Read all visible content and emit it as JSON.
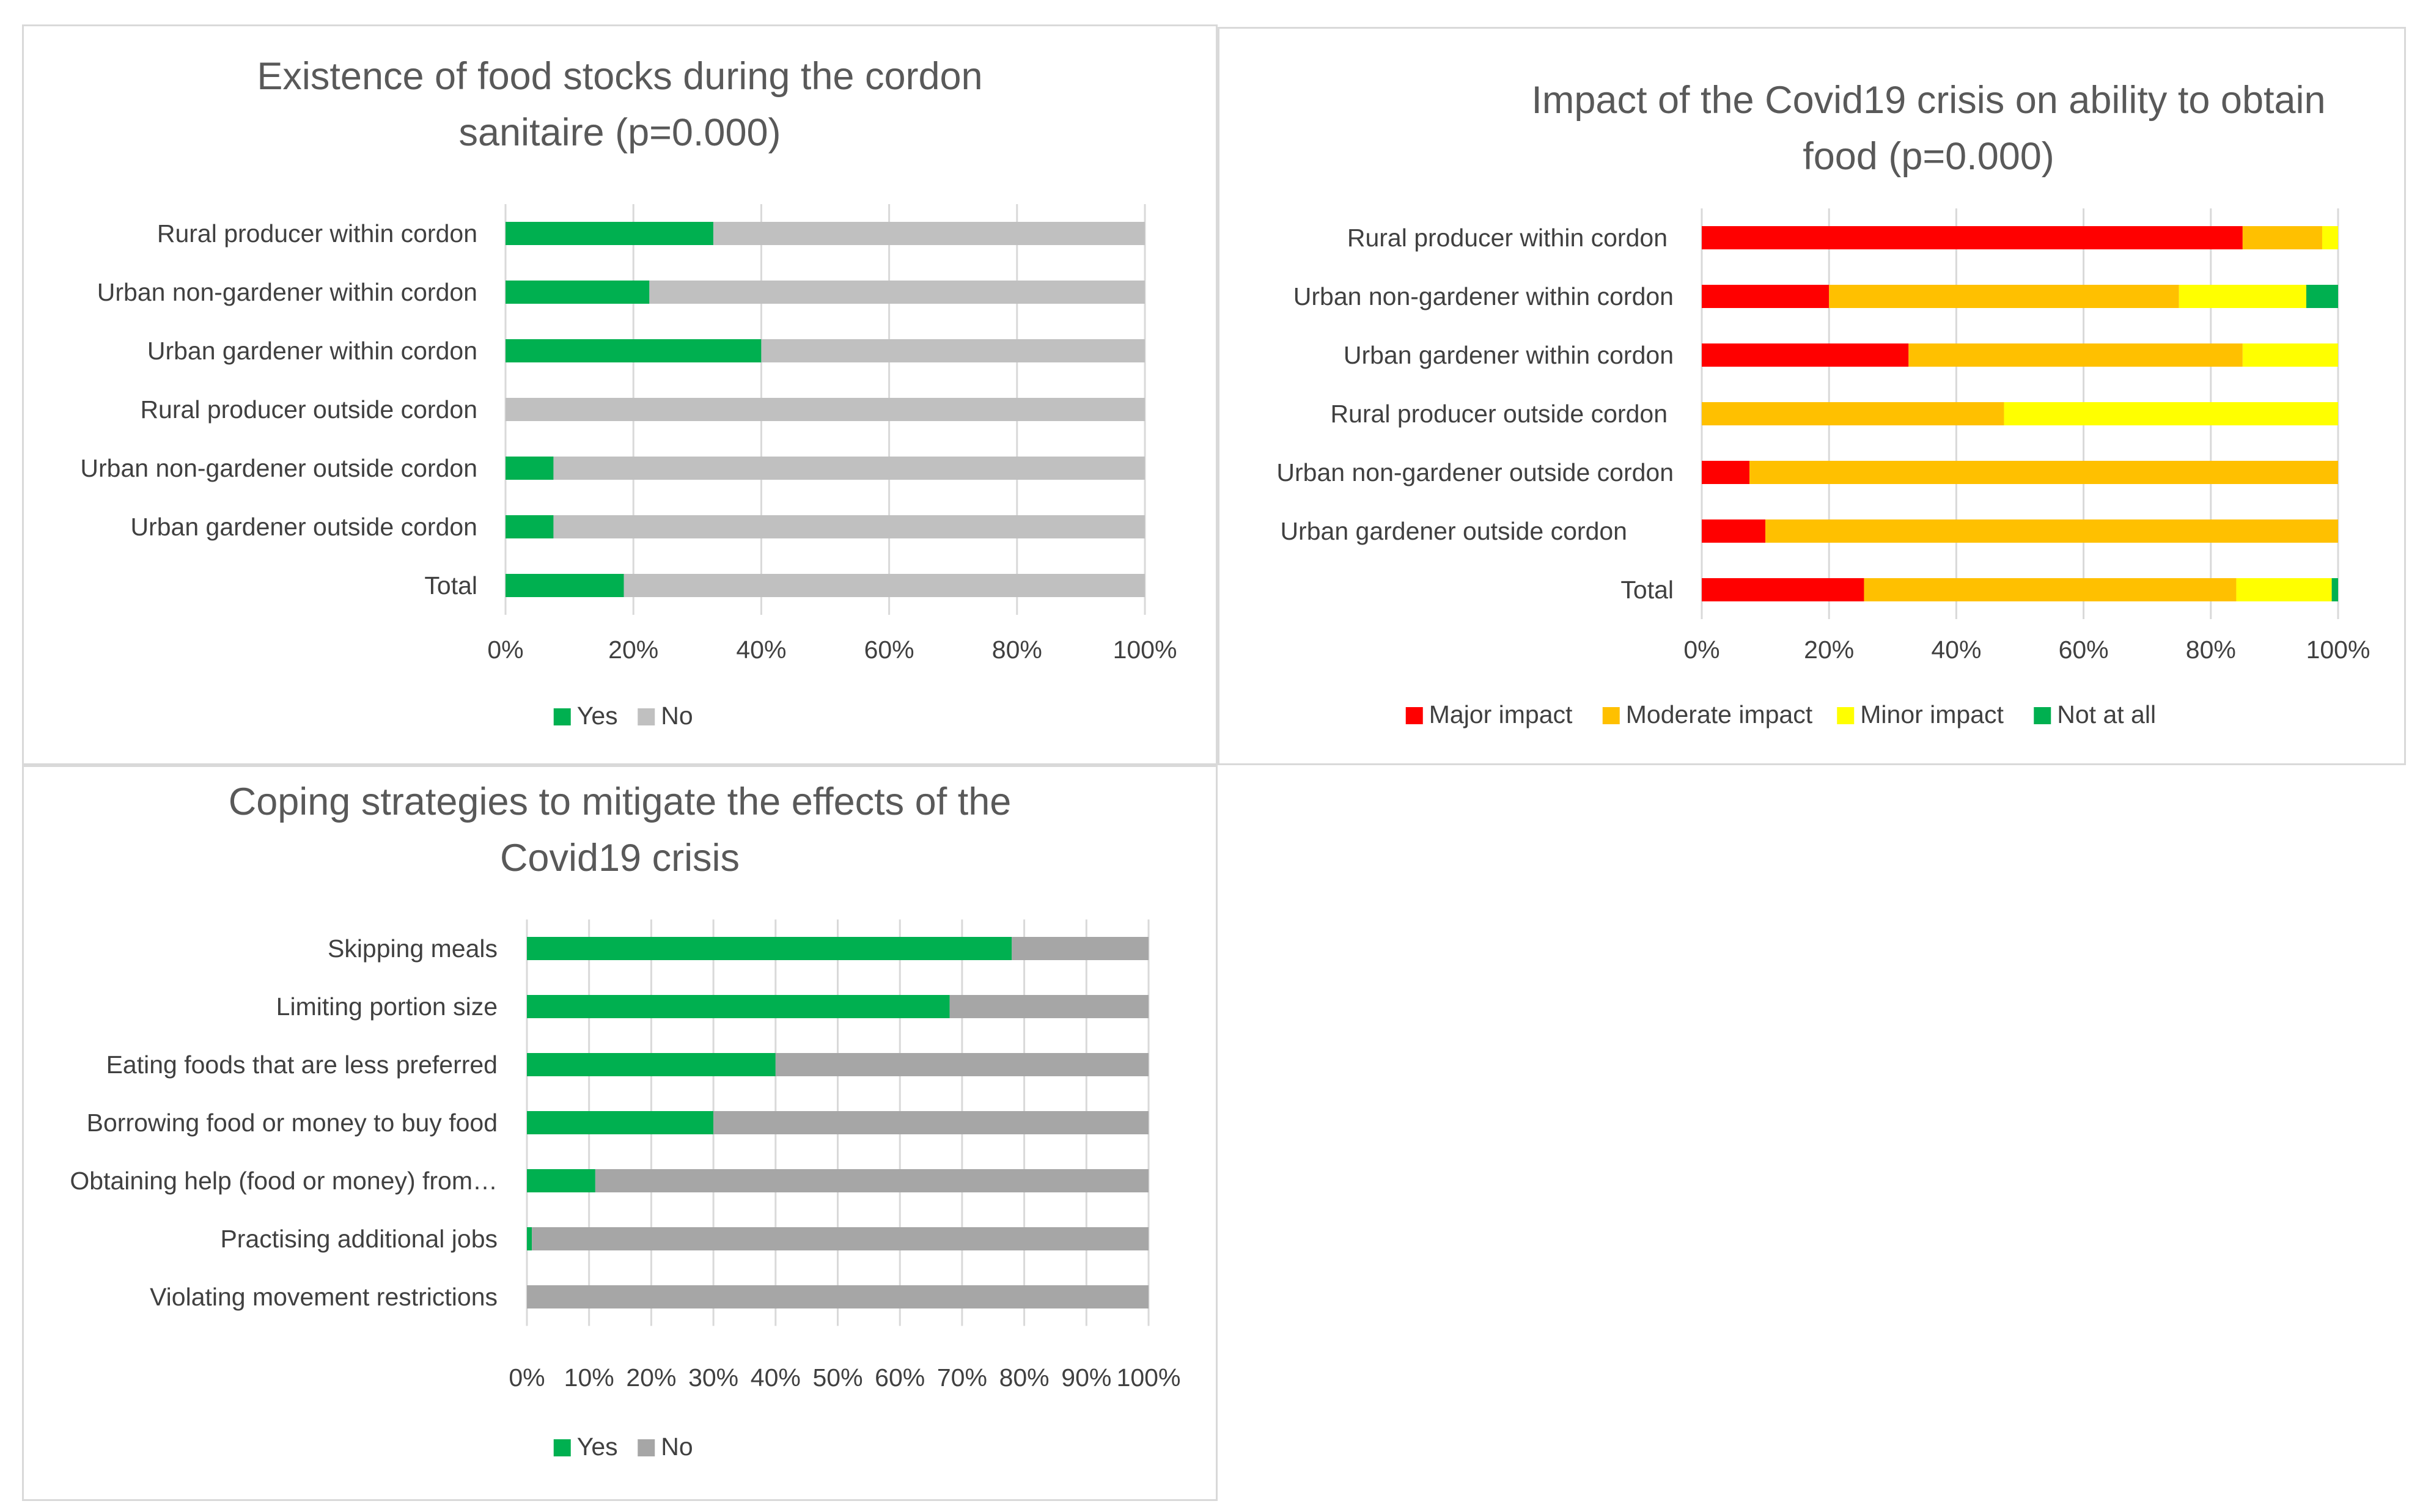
{
  "colors": {
    "yes": "#00b050",
    "no_light": "#c0c0c0",
    "no_dark": "#a6a6a6",
    "major": "#ff0000",
    "moderate": "#ffc000",
    "minor": "#ffff00",
    "not_at_all": "#00b050",
    "grid": "#d9d9d9",
    "text": "#404040",
    "title": "#595959"
  },
  "chart_data": [
    {
      "type": "bar",
      "orientation": "horizontal-stacked-100",
      "title": "Existence of food stocks during the cordon sanitaire (p=0.000)",
      "title_lines": [
        "Existence of food stocks during the cordon",
        "sanitaire (p=0.000)"
      ],
      "categories": [
        "Rural producer within cordon",
        "Urban non-gardener within cordon",
        "Urban gardener within cordon",
        "Rural producer outside cordon",
        "Urban non-gardener outside cordon",
        "Urban gardener outside cordon",
        "Total"
      ],
      "series": [
        {
          "name": "Yes",
          "color": "#00b050",
          "values": [
            32.5,
            22.5,
            40,
            0,
            7.5,
            7.5,
            18.5
          ]
        },
        {
          "name": "No",
          "color": "#c0c0c0",
          "values": [
            67.5,
            77.5,
            60,
            100,
            92.5,
            92.5,
            81.5
          ]
        }
      ],
      "xticks": [
        "0%",
        "20%",
        "40%",
        "60%",
        "80%",
        "100%"
      ],
      "xlim": [
        0,
        100
      ],
      "legend": "bottom"
    },
    {
      "type": "bar",
      "orientation": "horizontal-stacked-100",
      "title": "Impact of the Covid19 crisis on ability to obtain food (p=0.000)",
      "title_lines": [
        "Impact of the Covid19 crisis on ability to obtain",
        "food (p=0.000)"
      ],
      "categories": [
        "Rural producer within cordon",
        "Urban non-gardener within cordon",
        "Urban gardener within cordon",
        "Rural producer outside cordon",
        "Urban non-gardener outside cordon",
        "Urban gardener outside cordon",
        "Total"
      ],
      "series": [
        {
          "name": "Major impact",
          "color": "#ff0000",
          "values": [
            85,
            20,
            32.5,
            0,
            7.5,
            10,
            25.5
          ]
        },
        {
          "name": "Moderate impact",
          "color": "#ffc000",
          "values": [
            12.5,
            55,
            52.5,
            47.5,
            92.5,
            90,
            58.5
          ]
        },
        {
          "name": "Minor impact",
          "color": "#ffff00",
          "values": [
            2.5,
            20,
            15,
            52.5,
            0,
            0,
            15
          ]
        },
        {
          "name": "Not at all",
          "color": "#00b050",
          "values": [
            0,
            5,
            0,
            0,
            0,
            0,
            1
          ]
        }
      ],
      "xticks": [
        "0%",
        "20%",
        "40%",
        "60%",
        "80%",
        "100%"
      ],
      "xlim": [
        0,
        100
      ],
      "legend": "bottom"
    },
    {
      "type": "bar",
      "orientation": "horizontal-stacked-100",
      "title": "Coping strategies to mitigate the effects of the Covid19 crisis",
      "title_lines": [
        "Coping strategies to mitigate the effects of the",
        "Covid19 crisis"
      ],
      "categories": [
        "Skipping meals",
        "Limiting portion size",
        "Eating foods that are less preferred",
        "Borrowing food or money to buy food",
        "Obtaining help (food or money) from…",
        "Practising additional jobs",
        "Violating movement restrictions"
      ],
      "series": [
        {
          "name": "Yes",
          "color": "#00b050",
          "values": [
            78,
            68,
            40,
            30,
            11,
            0.8,
            0
          ]
        },
        {
          "name": "No",
          "color": "#a6a6a6",
          "values": [
            22,
            32,
            60,
            70,
            89,
            99.2,
            100
          ]
        }
      ],
      "xticks": [
        "0%",
        "10%",
        "20%",
        "30%",
        "40%",
        "50%",
        "60%",
        "70%",
        "80%",
        "90%",
        "100%"
      ],
      "xlim": [
        0,
        100
      ],
      "legend": "bottom"
    }
  ]
}
